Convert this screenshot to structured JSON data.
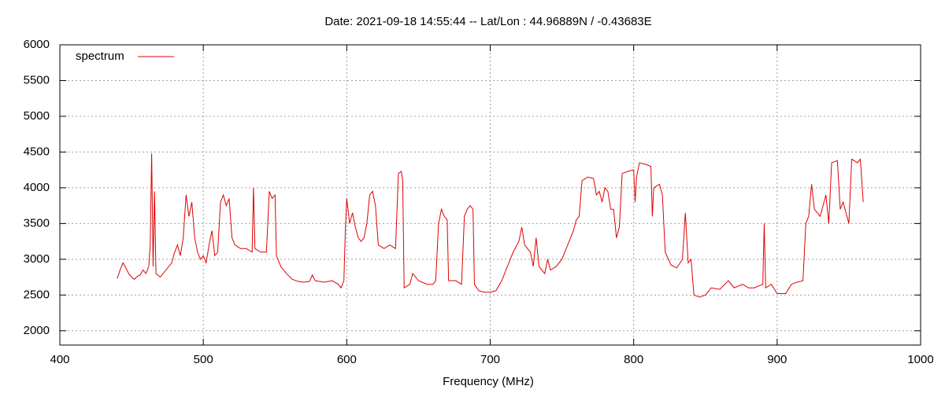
{
  "chart_data": {
    "type": "line",
    "title": "Date: 2021-09-18 14:55:44  --  Lat/Lon : 44.96889N / -0.43683E",
    "x_label": "Frequency (MHz)",
    "xlim": [
      400,
      1000
    ],
    "xticks": [
      400,
      500,
      600,
      700,
      800,
      900,
      1000
    ],
    "ylim": [
      1800,
      6000
    ],
    "yticks": [
      2000,
      2500,
      3000,
      3500,
      4000,
      4500,
      5000,
      5500,
      6000
    ],
    "grid": true,
    "legend": "top left",
    "series": [
      {
        "name": "spectrum",
        "color": "#e00000",
        "x": [
          440,
          442,
          444,
          446,
          448,
          450,
          452,
          454,
          456,
          458,
          460,
          462,
          463,
          464,
          465,
          466,
          467,
          470,
          474,
          478,
          480,
          482,
          484,
          486,
          488,
          490,
          492,
          494,
          496,
          498,
          500,
          502,
          504,
          506,
          508,
          510,
          512,
          514,
          516,
          518,
          520,
          522,
          526,
          530,
          534,
          535,
          536,
          540,
          544,
          546,
          548,
          550,
          551,
          554,
          558,
          562,
          566,
          570,
          574,
          576,
          578,
          584,
          590,
          594,
          596,
          598,
          599,
          600,
          602,
          604,
          606,
          608,
          610,
          612,
          614,
          616,
          618,
          620,
          622,
          626,
          630,
          634,
          636,
          638,
          639,
          640,
          644,
          646,
          650,
          656,
          660,
          662,
          664,
          666,
          668,
          670,
          671,
          676,
          680,
          682,
          684,
          686,
          688,
          689,
          692,
          696,
          700,
          704,
          708,
          712,
          716,
          720,
          722,
          724,
          728,
          730,
          732,
          734,
          738,
          740,
          742,
          746,
          750,
          754,
          758,
          760,
          762,
          764,
          768,
          772,
          774,
          776,
          778,
          780,
          782,
          784,
          786,
          788,
          790,
          792,
          796,
          800,
          801,
          802,
          804,
          808,
          812,
          813,
          814,
          818,
          820,
          822,
          826,
          830,
          834,
          836,
          838,
          840,
          842,
          846,
          850,
          854,
          860,
          866,
          870,
          876,
          880,
          884,
          890,
          891,
          892,
          896,
          900,
          906,
          910,
          914,
          918,
          920,
          922,
          924,
          926,
          930,
          934,
          936,
          938,
          942,
          944,
          946,
          950,
          952,
          956,
          958,
          960
        ],
        "values": [
          2730,
          2850,
          2950,
          2880,
          2800,
          2750,
          2720,
          2760,
          2780,
          2850,
          2800,
          2900,
          3200,
          4480,
          2900,
          3950,
          2800,
          2750,
          2850,
          2950,
          3100,
          3200,
          3050,
          3300,
          3900,
          3600,
          3800,
          3300,
          3100,
          3000,
          3050,
          2950,
          3200,
          3400,
          3050,
          3100,
          3800,
          3900,
          3750,
          3850,
          3300,
          3200,
          3150,
          3150,
          3100,
          4000,
          3150,
          3100,
          3100,
          3950,
          3850,
          3900,
          3050,
          2900,
          2800,
          2720,
          2690,
          2680,
          2690,
          2780,
          2700,
          2680,
          2700,
          2650,
          2600,
          2700,
          3400,
          3850,
          3500,
          3650,
          3450,
          3300,
          3250,
          3300,
          3500,
          3900,
          3950,
          3750,
          3200,
          3150,
          3200,
          3150,
          4200,
          4230,
          4100,
          2600,
          2650,
          2800,
          2700,
          2650,
          2650,
          2700,
          3500,
          3700,
          3600,
          3550,
          2700,
          2700,
          2650,
          3600,
          3700,
          3750,
          3700,
          2650,
          2560,
          2540,
          2540,
          2560,
          2700,
          2900,
          3100,
          3250,
          3450,
          3200,
          3100,
          2900,
          3300,
          2900,
          2800,
          3000,
          2850,
          2900,
          3000,
          3200,
          3400,
          3550,
          3600,
          4100,
          4150,
          4130,
          3900,
          3950,
          3800,
          4000,
          3950,
          3700,
          3700,
          3300,
          3450,
          4200,
          4230,
          4250,
          3800,
          4150,
          4350,
          4330,
          4300,
          3600,
          4000,
          4050,
          3900,
          3100,
          2920,
          2880,
          3000,
          3650,
          2950,
          3000,
          2500,
          2470,
          2500,
          2600,
          2580,
          2700,
          2600,
          2650,
          2600,
          2600,
          2650,
          3500,
          2600,
          2650,
          2520,
          2520,
          2650,
          2680,
          2700,
          3500,
          3600,
          4050,
          3700,
          3600,
          3900,
          3500,
          4350,
          4380,
          3700,
          3800,
          3500,
          4400,
          4350,
          4400,
          3800
        ]
      }
    ]
  }
}
